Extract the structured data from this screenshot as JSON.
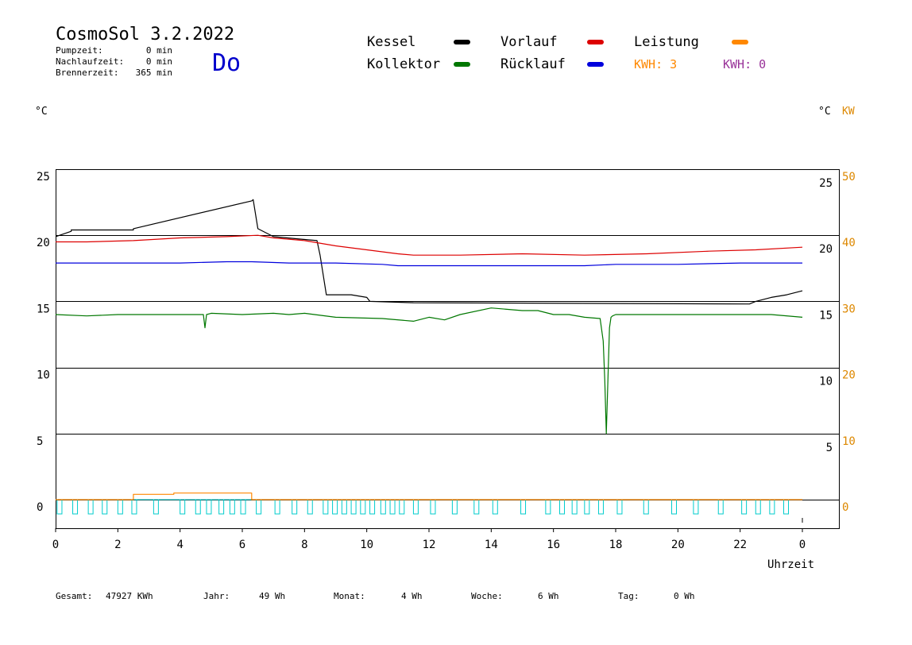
{
  "header": {
    "title": "CosmoSol 3.2.2022",
    "day": "Do",
    "pump_label": "Pumpzeit:",
    "pump_value": "0 min",
    "nachlauf_label": "Nachlaufzeit:",
    "nachlauf_value": "0 min",
    "brenner_label": "Brennerzeit:",
    "brenner_value": "365 min"
  },
  "legend": {
    "kessel": "Kessel",
    "kollektor": "Kollektor",
    "vorlauf": "Vorlauf",
    "ruecklauf": "Rücklauf",
    "leistung": "Leistung",
    "kwh1": "KWH: 3",
    "kwh2": "KWH: 0"
  },
  "axes": {
    "left_unit": "°C",
    "right_unit": "°C",
    "right_unit2": "KW",
    "xlabel": "Uhrzeit"
  },
  "footer": {
    "gesamt_label": "Gesamt:",
    "gesamt_value": "47927 KWh",
    "jahr_label": "Jahr:",
    "jahr_value": "49 Wh",
    "monat_label": "Monat:",
    "monat_value": "4 Wh",
    "woche_label": "Woche:",
    "woche_value": "6 Wh",
    "tag_label": "Tag:",
    "tag_value": "0 Wh"
  },
  "chart_data": {
    "type": "line",
    "xlabel": "Uhrzeit",
    "xlim": [
      0,
      24
    ],
    "ylim": [
      -2,
      25
    ],
    "x_ticks": [
      "0",
      "2",
      "4",
      "6",
      "8",
      "10",
      "12",
      "14",
      "16",
      "18",
      "20",
      "22",
      "0"
    ],
    "y_ticks_left": [
      "25",
      "20",
      "15",
      "10",
      "5",
      "0"
    ],
    "y_ticks_right": [
      "25",
      "20",
      "15",
      "10",
      "5"
    ],
    "y_ticks_kw": [
      "50",
      "40",
      "30",
      "20",
      "10",
      "0"
    ],
    "grid": true,
    "colors": {
      "kessel": "#000000",
      "vorlauf": "#dd0000",
      "ruecklauf": "#0000dd",
      "kollektor": "#007700",
      "leistung": "#ff8800",
      "kwh2": "#993399",
      "pump": "#00cccc",
      "kw_axis": "#dd8800",
      "day": "#0000cc"
    },
    "series": [
      {
        "name": "Kessel",
        "x": [
          0,
          0.5,
          0.5,
          2.5,
          2.5,
          6.3,
          6.35,
          6.5,
          7.0,
          8.4,
          8.5,
          8.7,
          9.5,
          10.0,
          10.1,
          11.5,
          22.3,
          22.5,
          23.0,
          23.5,
          24.0
        ],
        "y": [
          19.9,
          20.3,
          20.4,
          20.4,
          20.5,
          22.6,
          22.7,
          20.5,
          19.9,
          19.6,
          18.5,
          15.5,
          15.5,
          15.3,
          15.0,
          14.9,
          14.8,
          15.0,
          15.3,
          15.5,
          15.8
        ]
      },
      {
        "name": "Vorlauf",
        "x": [
          0,
          1.0,
          2.5,
          4.0,
          5.5,
          6.5,
          7.0,
          8.0,
          9.0,
          10.0,
          11.0,
          11.5,
          13.0,
          15.0,
          17.0,
          19.0,
          21.0,
          22.5,
          24.0
        ],
        "y": [
          19.5,
          19.5,
          19.6,
          19.8,
          19.9,
          20.0,
          19.8,
          19.6,
          19.2,
          18.9,
          18.6,
          18.5,
          18.5,
          18.6,
          18.5,
          18.6,
          18.8,
          18.9,
          19.1
        ]
      },
      {
        "name": "Rücklauf",
        "x": [
          0,
          2.0,
          4.0,
          5.5,
          6.3,
          7.5,
          9.0,
          10.5,
          11.0,
          12.0,
          14.0,
          16.0,
          17.0,
          18.0,
          20.0,
          22.0,
          24.0
        ],
        "y": [
          17.9,
          17.9,
          17.9,
          18.0,
          18.0,
          17.9,
          17.9,
          17.8,
          17.7,
          17.7,
          17.7,
          17.7,
          17.7,
          17.8,
          17.8,
          17.9,
          17.9
        ]
      },
      {
        "name": "Kollektor",
        "x": [
          0,
          1.0,
          2.0,
          3.0,
          4.5,
          4.75,
          4.8,
          4.85,
          5.0,
          6.0,
          7.0,
          7.5,
          8.0,
          9.0,
          10.5,
          11.5,
          12.0,
          12.5,
          13.0,
          14.0,
          15.0,
          15.5,
          16.0,
          16.5,
          17.0,
          17.5,
          17.6,
          17.65,
          17.7,
          17.75,
          17.8,
          17.85,
          17.9,
          18.0,
          19.0,
          20.0,
          21.0,
          22.0,
          23.0,
          24.0
        ],
        "y": [
          14.0,
          13.9,
          14.0,
          14.0,
          14.0,
          14.0,
          13.0,
          14.0,
          14.1,
          14.0,
          14.1,
          14.0,
          14.1,
          13.8,
          13.7,
          13.5,
          13.8,
          13.6,
          14.0,
          14.5,
          14.3,
          14.3,
          14.0,
          14.0,
          13.8,
          13.7,
          12.0,
          9.0,
          5.0,
          9.0,
          13.0,
          13.8,
          13.9,
          14.0,
          14.0,
          14.0,
          14.0,
          14.0,
          14.0,
          13.8
        ]
      },
      {
        "name": "Leistung",
        "x": [
          0,
          2.5,
          2.5,
          3.8,
          3.8,
          6.3,
          6.3,
          24
        ],
        "y": [
          0,
          0,
          0.8,
          0.8,
          1.0,
          1.0,
          0,
          0
        ]
      }
    ],
    "pump_pulses": [
      0.05,
      0.55,
      1.05,
      1.5,
      2.0,
      2.45,
      3.15,
      4.0,
      4.5,
      4.85,
      5.25,
      5.6,
      5.95,
      6.45,
      7.05,
      7.6,
      8.1,
      8.6,
      8.9,
      9.2,
      9.5,
      9.8,
      10.1,
      10.45,
      10.75,
      11.05,
      11.5,
      12.05,
      12.75,
      13.45,
      14.05,
      14.95,
      15.75,
      16.2,
      16.6,
      17.0,
      17.45,
      18.05,
      18.9,
      19.8,
      20.5,
      21.3,
      22.05,
      22.5,
      22.95,
      23.4
    ]
  }
}
